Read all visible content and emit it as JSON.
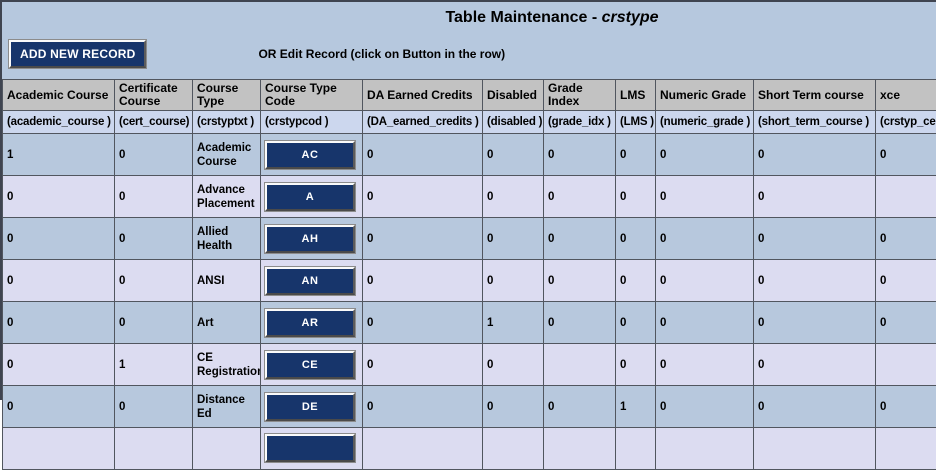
{
  "page": {
    "title_prefix": "Table Maintenance - ",
    "title_emph": "crstype",
    "add_button_label": "ADD NEW RECORD",
    "edit_hint": "OR Edit Record (click on Button in the row)"
  },
  "table": {
    "columns": [
      {
        "label": "Academic Course",
        "field": "(academic_course )"
      },
      {
        "label": "Certificate Course",
        "field": "(cert_course)"
      },
      {
        "label": "Course Type",
        "field": "(crstyptxt )"
      },
      {
        "label": "Course Type Code",
        "field": "(crstypcod )"
      },
      {
        "label": "DA Earned Credits",
        "field": "(DA_earned_credits )"
      },
      {
        "label": "Disabled",
        "field": "(disabled )"
      },
      {
        "label": "Grade Index",
        "field": "(grade_idx )"
      },
      {
        "label": "LMS",
        "field": "(LMS )"
      },
      {
        "label": "Numeric Grade",
        "field": "(numeric_grade )"
      },
      {
        "label": "Short Term course",
        "field": "(short_term_course )"
      },
      {
        "label": "xce",
        "field": "(crstyp_ce"
      }
    ],
    "rows": [
      {
        "cells": [
          "1",
          "0",
          "Academic Course",
          "AC",
          "0",
          "0",
          "0",
          "0",
          "0",
          "0",
          "0"
        ]
      },
      {
        "cells": [
          "0",
          "0",
          "Advance Placement",
          "A",
          "0",
          "0",
          "0",
          "0",
          "0",
          "0",
          ""
        ]
      },
      {
        "cells": [
          "0",
          "0",
          "Allied Health",
          "AH",
          "0",
          "0",
          "0",
          "0",
          "0",
          "0",
          "0"
        ]
      },
      {
        "cells": [
          "0",
          "0",
          "ANSI",
          "AN",
          "0",
          "0",
          "0",
          "0",
          "0",
          "0",
          "0"
        ]
      },
      {
        "cells": [
          "0",
          "0",
          "Art",
          "AR",
          "0",
          "1",
          "0",
          "0",
          "0",
          "0",
          "0"
        ]
      },
      {
        "cells": [
          "0",
          "1",
          "CE Registration",
          "CE",
          "0",
          "0",
          "",
          "0",
          "0",
          "0",
          ""
        ]
      },
      {
        "cells": [
          "0",
          "0",
          "Distance Ed",
          "DE",
          "0",
          "0",
          "0",
          "1",
          "0",
          "0",
          "0"
        ]
      },
      {
        "cells": [
          "",
          "",
          "",
          "",
          "",
          "",
          "",
          "",
          "",
          "",
          ""
        ]
      }
    ]
  },
  "colors": {
    "accent_navy": "#17356b",
    "page_bg": "#b6c8de",
    "header_bg": "#c2c2c2",
    "field_row_bg": "#ccd7ee",
    "row_odd_bg": "#b7c8dd",
    "row_even_bg": "#dcdcf1"
  }
}
